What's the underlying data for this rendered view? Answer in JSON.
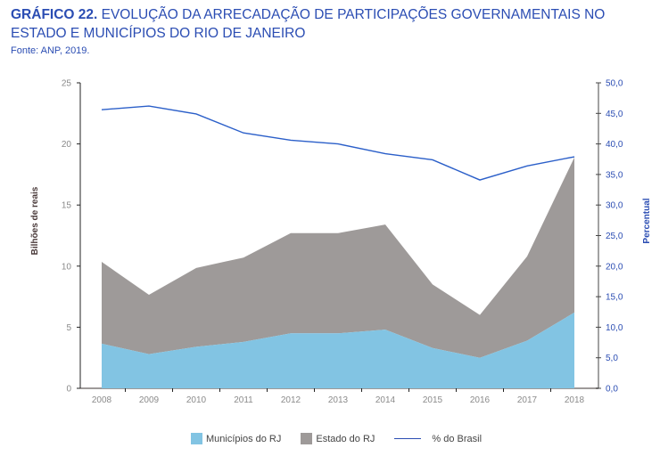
{
  "header": {
    "title_bold": "GRÁFICO 22.",
    "title_rest": " EVOLUÇÃO DA ARRECADAÇÃO DE PARTICIPAÇÕES GOVERNAMENTAIS NO ESTADO E MUNICÍPIOS DO RIO DE JANEIRO",
    "source": "Fonte: ANP, 2019."
  },
  "colors": {
    "municipios": "#82c4e3",
    "estado": "#9e9a99",
    "brasil": "#2b5fc9"
  },
  "chart_data": {
    "type": "area",
    "title": "GRÁFICO 22. EVOLUÇÃO DA ARRECADAÇÃO DE PARTICIPAÇÕES GOVERNAMENTAIS NO ESTADO E MUNICÍPIOS DO RIO DE JANEIRO",
    "categories": [
      "2008",
      "2009",
      "2010",
      "2011",
      "2012",
      "2013",
      "2014",
      "2015",
      "2016",
      "2017",
      "2018"
    ],
    "series": [
      {
        "name": "Municípios do RJ",
        "kind": "stacked-area",
        "axis": "left",
        "values": [
          3.65,
          2.8,
          3.4,
          3.8,
          4.5,
          4.5,
          4.8,
          3.3,
          2.5,
          3.9,
          6.2
        ]
      },
      {
        "name": "Estado do RJ",
        "kind": "stacked-area",
        "axis": "left",
        "values": [
          6.7,
          4.85,
          6.45,
          6.9,
          8.2,
          8.2,
          8.6,
          5.2,
          3.5,
          6.9,
          12.7
        ]
      },
      {
        "name": "% do Brasil",
        "kind": "line",
        "axis": "right",
        "values": [
          45.6,
          46.2,
          44.9,
          41.8,
          40.6,
          40.0,
          38.4,
          37.4,
          34.1,
          36.4,
          37.9
        ]
      }
    ],
    "ylabel": "Bilhões de reais",
    "ylim": [
      0,
      25
    ],
    "yticks": [
      "0",
      "5",
      "10",
      "15",
      "20",
      "25"
    ],
    "y2label": "Percentual",
    "y2lim": [
      0,
      50
    ],
    "y2ticks": [
      "0,0",
      "5,0",
      "10,0",
      "15,0",
      "20,0",
      "25,0",
      "30,0",
      "35,0",
      "40,0",
      "45,0",
      "50,0"
    ],
    "legend": [
      "Municípios do RJ",
      "Estado do RJ",
      "% do Brasil"
    ],
    "legend_position": "bottom",
    "grid": false
  }
}
